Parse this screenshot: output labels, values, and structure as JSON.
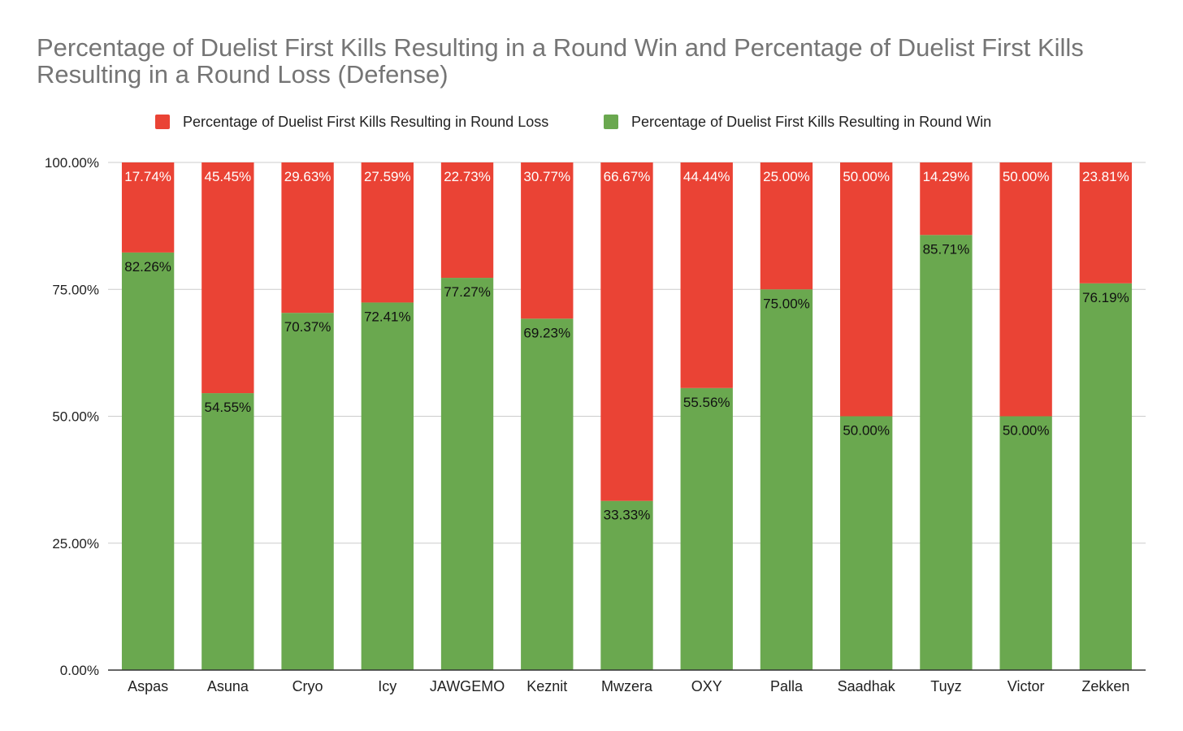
{
  "chart_data": {
    "type": "bar",
    "stacked": true,
    "title": "Percentage of Duelist First Kills Resulting in a Round Win and Percentage of Duelist First Kills Resulting in a Round Loss (Defense)",
    "categories": [
      "Aspas",
      "Asuna",
      "Cryo",
      "Icy",
      "JAWGEMO",
      "Keznit",
      "Mwzera",
      "OXY",
      "Palla",
      "Saadhak",
      "Tuyz",
      "Victor",
      "Zekken"
    ],
    "series": [
      {
        "name": "Percentage of Duelist First Kills Resulting in Round Win",
        "color": "#6aa84f",
        "values": [
          82.26,
          54.55,
          70.37,
          72.41,
          77.27,
          69.23,
          33.33,
          55.56,
          75.0,
          50.0,
          85.71,
          50.0,
          76.19
        ],
        "labels": [
          "82.26%",
          "54.55%",
          "70.37%",
          "72.41%",
          "77.27%",
          "69.23%",
          "33.33%",
          "55.56%",
          "75.00%",
          "50.00%",
          "85.71%",
          "50.00%",
          "76.19%"
        ]
      },
      {
        "name": "Percentage of Duelist First Kills Resulting in Round Loss",
        "color": "#ea4335",
        "values": [
          17.74,
          45.45,
          29.63,
          27.59,
          22.73,
          30.77,
          66.67,
          44.44,
          25.0,
          50.0,
          14.29,
          50.0,
          23.81
        ],
        "labels": [
          "17.74%",
          "45.45%",
          "29.63%",
          "27.59%",
          "22.73%",
          "30.77%",
          "66.67%",
          "44.44%",
          "25.00%",
          "50.00%",
          "14.29%",
          "50.00%",
          "23.81%"
        ]
      }
    ],
    "ylim": [
      0,
      100
    ],
    "yticks": [
      0,
      25,
      50,
      75,
      100
    ],
    "ytick_labels": [
      "0.00%",
      "25.00%",
      "50.00%",
      "75.00%",
      "100.00%"
    ],
    "legend_order": [
      "Percentage of Duelist First Kills Resulting in Round Loss",
      "Percentage of Duelist First Kills Resulting in Round Win"
    ],
    "legend_position": "top",
    "grid": true
  }
}
